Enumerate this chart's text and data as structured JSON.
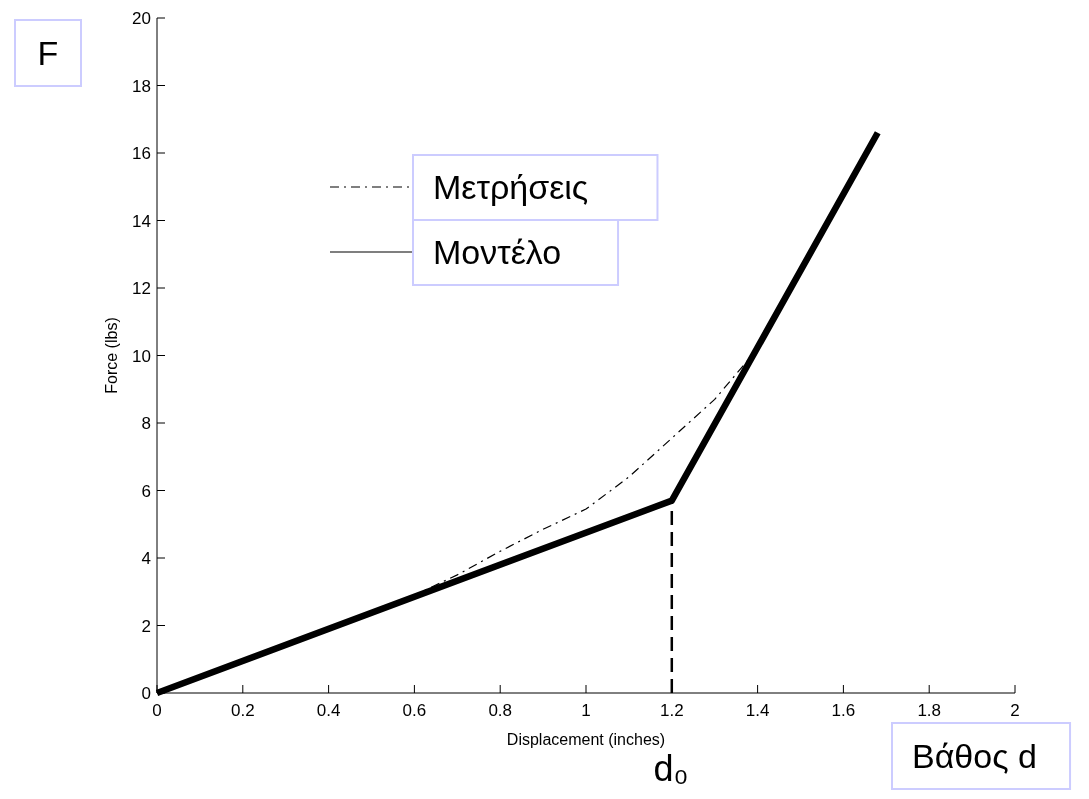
{
  "chart_data": {
    "type": "line",
    "xlabel": "Displacement (inches)",
    "ylabel": "Force (lbs)",
    "xlim": [
      0,
      2
    ],
    "xticks": [
      0,
      0.2,
      0.4,
      0.6,
      0.8,
      1,
      1.2,
      1.4,
      1.6,
      1.8,
      2
    ],
    "ylim": [
      0,
      20
    ],
    "yticks": [
      0,
      2,
      4,
      6,
      8,
      10,
      12,
      14,
      16,
      18,
      20
    ],
    "series": [
      {
        "name": "Μετρήσεις",
        "color": "#000000",
        "line_style": "dashdot",
        "x": [
          0,
          0.1,
          0.2,
          0.3,
          0.4,
          0.5,
          0.6,
          0.7,
          0.8,
          0.9,
          1.0,
          1.1,
          1.2,
          1.3,
          1.4
        ],
        "values": [
          0,
          0.45,
          0.92,
          1.4,
          1.9,
          2.4,
          2.9,
          3.5,
          4.2,
          4.85,
          5.45,
          6.4,
          7.55,
          8.7,
          10.2
        ]
      },
      {
        "name": "Μοντέλο",
        "color": "#000000",
        "line_style": "solid",
        "x": [
          0,
          1.2,
          1.68
        ],
        "values": [
          0,
          5.7,
          16.6
        ]
      },
      {
        "color": "#000000",
        "line_style": "dashed",
        "x": [
          1.2,
          1.2
        ],
        "values": [
          0,
          5.7
        ]
      }
    ],
    "legend": "top left",
    "marker": "none",
    "annotations": [
      "F",
      "Βάθος d",
      "d₀"
    ]
  }
}
